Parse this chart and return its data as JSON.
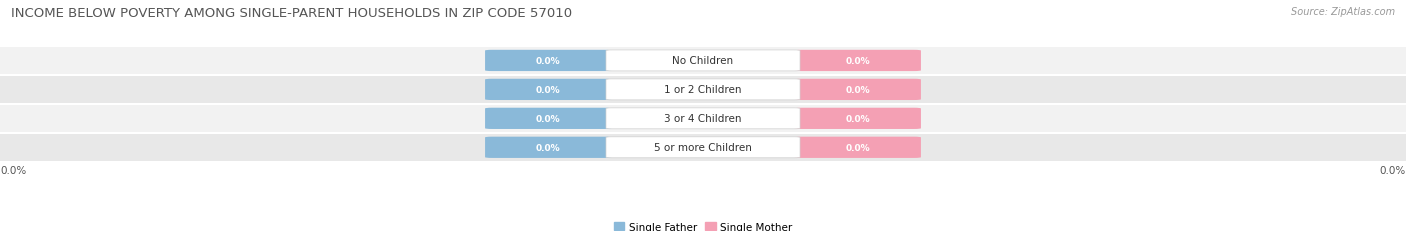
{
  "title": "INCOME BELOW POVERTY AMONG SINGLE-PARENT HOUSEHOLDS IN ZIP CODE 57010",
  "source_text": "Source: ZipAtlas.com",
  "categories": [
    "No Children",
    "1 or 2 Children",
    "3 or 4 Children",
    "5 or more Children"
  ],
  "single_father_values": [
    0.0,
    0.0,
    0.0,
    0.0
  ],
  "single_mother_values": [
    0.0,
    0.0,
    0.0,
    0.0
  ],
  "father_color": "#8ab9d9",
  "mother_color": "#f4a0b4",
  "row_bg_odd": "#f2f2f2",
  "row_bg_even": "#e8e8e8",
  "title_fontsize": 9.5,
  "source_fontsize": 7,
  "value_fontsize": 6.5,
  "category_fontsize": 7.5,
  "legend_fontsize": 7.5,
  "axis_label_fontsize": 7.5,
  "background_color": "#ffffff",
  "x_tick_label_left": "0.0%",
  "x_tick_label_right": "0.0%",
  "legend_labels": [
    "Single Father",
    "Single Mother"
  ]
}
